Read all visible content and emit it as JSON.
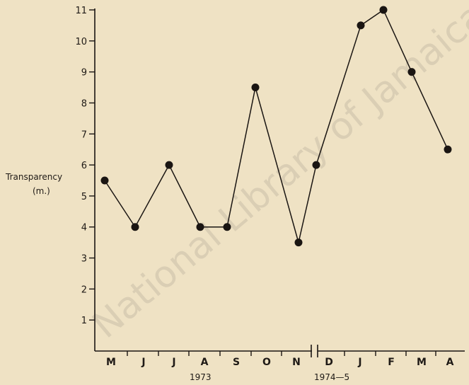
{
  "chart_data": {
    "type": "line",
    "ylabel": [
      "Transparency",
      "(m.)"
    ],
    "ylim": [
      0,
      11
    ],
    "yticks": [
      1,
      2,
      3,
      4,
      5,
      6,
      7,
      8,
      9,
      10,
      11
    ],
    "categories": [
      "M",
      "J",
      "J",
      "A",
      "S",
      "O",
      "N",
      "D",
      "J",
      "F",
      "M",
      "A"
    ],
    "x_groups": [
      {
        "label": "1973",
        "months": [
          "M",
          "J",
          "J",
          "A",
          "S",
          "O",
          "N"
        ]
      },
      {
        "label": "1974—5",
        "months": [
          "D",
          "J",
          "F",
          "M",
          "A"
        ]
      }
    ],
    "series": [
      {
        "points": [
          {
            "x": "M 1973",
            "y": 5.5
          },
          {
            "x": "J 1973",
            "y": 4.0
          },
          {
            "x": "J 1973",
            "y": 6.0
          },
          {
            "x": "A 1973 (early)",
            "y": 4.0
          },
          {
            "x": "A 1973 (late)",
            "y": 4.0
          },
          {
            "x": "S/O 1973",
            "y": 8.5
          },
          {
            "x": "N 1973",
            "y": 3.5
          },
          {
            "x": "D 1974",
            "y": 6.0
          },
          {
            "x": "J 1975",
            "y": 10.5
          },
          {
            "x": "F 1975",
            "y": 11.0
          },
          {
            "x": "M 1975",
            "y": 9.0
          },
          {
            "x": "A 1975",
            "y": 6.5
          }
        ]
      }
    ],
    "axis_break": "between N and D",
    "grid": false,
    "line_color": "#1a1512",
    "marker_color": "#1a1512"
  },
  "watermark": "National Library of Jamaica"
}
